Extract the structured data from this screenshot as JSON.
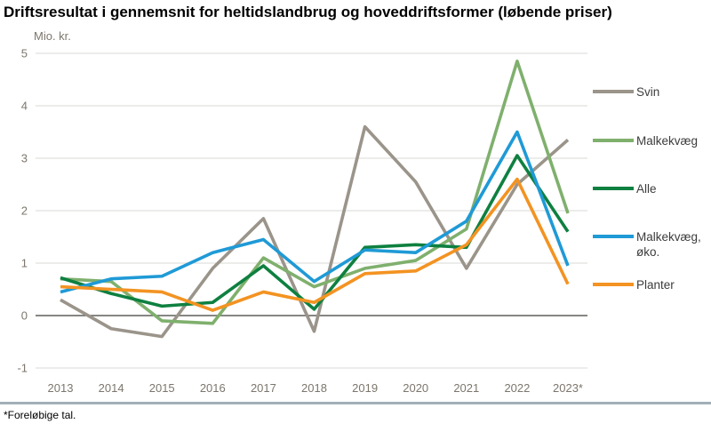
{
  "title": "Driftsresultat i gennemsnit for heltidslandbrug og hoveddriftsformer (løbende priser)",
  "footnote": "*Foreløbige tal.",
  "chart_data": {
    "type": "line",
    "title": "Driftsresultat i gennemsnit for heltidslandbrug og hoveddriftsformer (løbende priser)",
    "ylabel": "Mio. kr.",
    "xlabel": "",
    "categories": [
      "2013",
      "2014",
      "2015",
      "2016",
      "2017",
      "2018",
      "2019",
      "2020",
      "2021",
      "2022",
      "2023*"
    ],
    "series": [
      {
        "name": "Svin",
        "color": "#9a948a",
        "values": [
          0.3,
          -0.25,
          -0.4,
          0.9,
          1.85,
          -0.3,
          3.6,
          2.55,
          0.9,
          2.5,
          3.35
        ]
      },
      {
        "name": "Malkekvæg",
        "color": "#7fb06d",
        "values": [
          0.7,
          0.65,
          -0.1,
          -0.15,
          1.1,
          0.55,
          0.9,
          1.05,
          1.65,
          4.85,
          1.95
        ]
      },
      {
        "name": "Alle",
        "color": "#0e8040",
        "values": [
          0.72,
          0.42,
          0.18,
          0.25,
          0.95,
          0.12,
          1.3,
          1.35,
          1.3,
          3.05,
          1.6
        ]
      },
      {
        "name": "Malkekvæg, øko.",
        "color": "#1f9ad6",
        "values": [
          0.45,
          0.7,
          0.75,
          1.2,
          1.45,
          0.65,
          1.25,
          1.2,
          1.8,
          3.5,
          0.95
        ]
      },
      {
        "name": "Planter",
        "color": "#f39322",
        "values": [
          0.55,
          0.5,
          0.45,
          0.1,
          0.45,
          0.25,
          0.8,
          0.85,
          1.35,
          2.6,
          0.6
        ]
      }
    ],
    "ylim": [
      -1,
      5
    ],
    "yticks": [
      5,
      4,
      3,
      2,
      1,
      0,
      -1
    ],
    "grid": true,
    "legend_position": "right",
    "colors": {
      "gridline": "#d9d9d6",
      "zero_line": "#5f5f5a",
      "tick_label": "#7c766d",
      "separator": "#a2b0b8"
    }
  }
}
